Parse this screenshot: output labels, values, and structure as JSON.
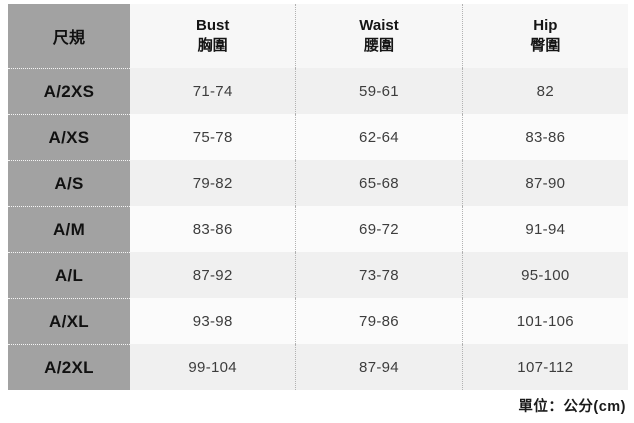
{
  "chart_data": {
    "type": "table",
    "size_column_header": "尺規",
    "columns": [
      {
        "en": "Bust",
        "zh": "胸圍"
      },
      {
        "en": "Waist",
        "zh": "腰圍"
      },
      {
        "en": "Hip",
        "zh": "臀圍"
      }
    ],
    "rows": [
      {
        "size": "A/2XS",
        "bust": "71-74",
        "waist": "59-61",
        "hip": "82"
      },
      {
        "size": "A/XS",
        "bust": "75-78",
        "waist": "62-64",
        "hip": "83-86"
      },
      {
        "size": "A/S",
        "bust": "79-82",
        "waist": "65-68",
        "hip": "87-90"
      },
      {
        "size": "A/M",
        "bust": "83-86",
        "waist": "69-72",
        "hip": "91-94"
      },
      {
        "size": "A/L",
        "bust": "87-92",
        "waist": "73-78",
        "hip": "95-100"
      },
      {
        "size": "A/XL",
        "bust": "93-98",
        "waist": "79-86",
        "hip": "101-106"
      },
      {
        "size": "A/2XL",
        "bust": "99-104",
        "waist": "87-94",
        "hip": "107-112"
      }
    ],
    "unit_note": "單位：公分(cm)"
  },
  "colors": {
    "size_column_bg": "#a2a2a2",
    "header_row_bg": "#f7f7f7",
    "row_shaded_bg": "#f0f0f0",
    "row_plain_bg": "#fbfbfb",
    "dotted_separator": "#b2b2b2",
    "heading_text": "#151515",
    "value_text": "#3d3d3d"
  }
}
